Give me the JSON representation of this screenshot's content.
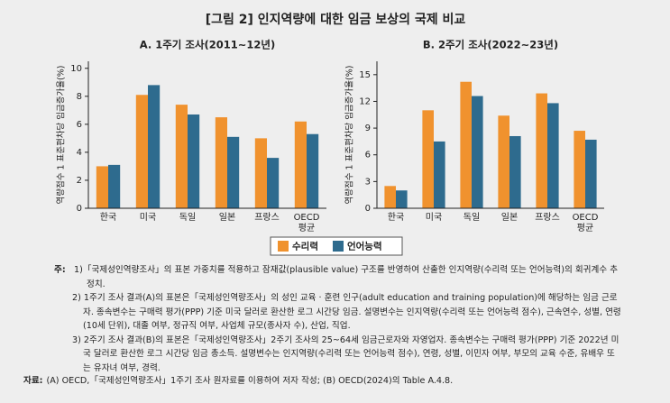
{
  "title": "[그림 2] 인지역량에 대한 임금 보상의 국제 비교",
  "chart_data": [
    {
      "type": "bar",
      "title": "A. 1주기 조사(2011~12년)",
      "y_label": "역량점수 1 표준편차당 임금증가율(%)",
      "categories": [
        "한국",
        "미국",
        "독일",
        "일본",
        "프랑스",
        "OECD\n평균"
      ],
      "series": [
        {
          "name": "수리력",
          "color": "#f0922e",
          "values": [
            3.0,
            8.1,
            7.4,
            6.5,
            5.0,
            6.2
          ]
        },
        {
          "name": "언어능력",
          "color": "#2e6b8e",
          "values": [
            3.1,
            8.8,
            6.7,
            5.1,
            3.6,
            5.3
          ]
        }
      ],
      "ylim": [
        0,
        10.5
      ],
      "yticks": [
        0,
        2,
        4,
        6,
        8,
        10
      ],
      "legend": "bottom"
    },
    {
      "type": "bar",
      "title": "B. 2주기 조사(2022~23년)",
      "y_label": "역량점수 1 표준편차당 임금증가율(%)",
      "categories": [
        "한국",
        "미국",
        "독일",
        "일본",
        "프랑스",
        "OECD\n평균"
      ],
      "series": [
        {
          "color": "#f0922e",
          "values": [
            2.5,
            11.0,
            14.2,
            10.4,
            12.9,
            8.7
          ]
        },
        {
          "color": "#2e6b8e",
          "values": [
            2.0,
            7.5,
            12.6,
            8.1,
            11.8,
            7.7
          ]
        }
      ],
      "ylim": [
        0,
        16.5
      ],
      "yticks": [
        0,
        3,
        6,
        9,
        12,
        15
      ]
    }
  ],
  "notes": {
    "label": "주:",
    "items": [
      "1)「국제성인역량조사」의 표본 가중치를 적용하고 잠재값(plausible value) 구조를 반영하여 산출한 인지역량(수리력 또는 언어능력)의 회귀계수 추정치.",
      "2) 1주기 조사 결과(A)의 표본은「국제성인역량조사」의 성인 교육 · 훈련 인구(adult education and training population)에 해당하는 임금 근로자. 종속변수는 구매력 평가(PPP) 기준 미국 달러로 환산한 로그 시간당 임금. 설명변수는 인지역량(수리력 또는 언어능력 점수), 근속연수, 성별, 연령(10세 단위), 대졸 여부, 정규직 여부, 사업체 규모(종사자 수), 산업, 직업.",
      "3) 2주기 조사 결과(B)의 표본은「국제성인역량조사」2주기 조사의 25~64세 임금근로자와 자영업자. 종속변수는 구매력 평가(PPP) 기준 2022년 미국 달러로 환산한 로그 시간당 임금 총소득. 설명변수는 인지역량(수리력 또는 언어능력 점수), 연령, 성별, 이민자 여부, 부모의 교육 수준, 유배우 또는 유자녀 여부, 경력."
    ]
  },
  "source": {
    "label": "자료:",
    "text": "(A) OECD,「국제성인역량조사」1주기 조사 원자료를 이용하여 저자 작성; (B) OECD(2024)의 Table A.4.8."
  }
}
